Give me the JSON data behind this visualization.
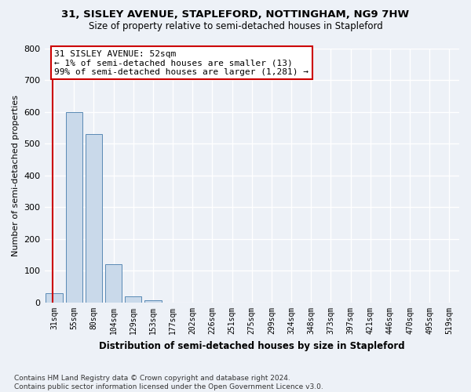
{
  "title1": "31, SISLEY AVENUE, STAPLEFORD, NOTTINGHAM, NG9 7HW",
  "title2": "Size of property relative to semi-detached houses in Stapleford",
  "xlabel": "Distribution of semi-detached houses by size in Stapleford",
  "ylabel": "Number of semi-detached properties",
  "footer1": "Contains HM Land Registry data © Crown copyright and database right 2024.",
  "footer2": "Contains public sector information licensed under the Open Government Licence v3.0.",
  "annotation_title": "31 SISLEY AVENUE: 52sqm",
  "annotation_line2": "← 1% of semi-detached houses are smaller (13)",
  "annotation_line3": "99% of semi-detached houses are larger (1,281) →",
  "bar_categories": [
    "31sqm",
    "55sqm",
    "80sqm",
    "104sqm",
    "129sqm",
    "153sqm",
    "177sqm",
    "202sqm",
    "226sqm",
    "251sqm",
    "275sqm",
    "299sqm",
    "324sqm",
    "348sqm",
    "373sqm",
    "397sqm",
    "421sqm",
    "446sqm",
    "470sqm",
    "495sqm",
    "519sqm"
  ],
  "bar_values": [
    30,
    600,
    530,
    120,
    20,
    8,
    0,
    0,
    0,
    0,
    0,
    0,
    0,
    0,
    0,
    0,
    0,
    0,
    0,
    0,
    0
  ],
  "bar_color": "#c9d9ea",
  "bar_edgecolor": "#5a8ab5",
  "bg_color": "#edf1f7",
  "grid_color": "#ffffff",
  "annotation_box_edgecolor": "#cc0000",
  "annotation_box_facecolor": "#ffffff",
  "vline_color": "#cc0000",
  "vline_x": -0.08,
  "ylim": [
    0,
    800
  ],
  "yticks": [
    0,
    100,
    200,
    300,
    400,
    500,
    600,
    700,
    800
  ],
  "title1_fontsize": 9.5,
  "title2_fontsize": 8.5,
  "ylabel_fontsize": 8,
  "xlabel_fontsize": 8.5,
  "tick_fontsize": 8,
  "xtick_fontsize": 7,
  "footer_fontsize": 6.5,
  "ann_fontsize": 8
}
